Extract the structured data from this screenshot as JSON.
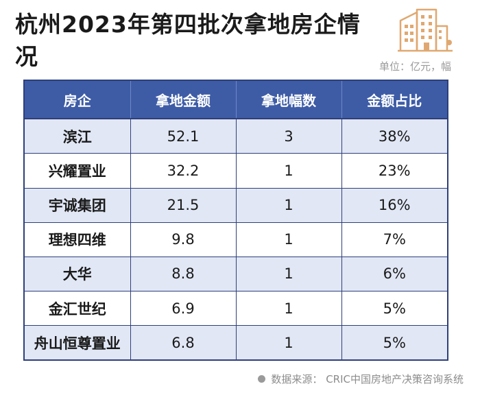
{
  "title": "杭州2023年第四批次拿地房企情况",
  "unit": "单位：亿元，幅",
  "source": "数据来源： CRIC中国房地产决策咨询系统",
  "colors": {
    "header_bg": "#3e5ca6",
    "stripe": "#e1e7f5",
    "border": "#2d3f7a",
    "icon": "#e0a870"
  },
  "icon": "building-icon",
  "table": {
    "headers": [
      "房企",
      "拿地金额",
      "拿地幅数",
      "金额占比"
    ],
    "rows": [
      [
        "滨江",
        "52.1",
        "3",
        "38%"
      ],
      [
        "兴耀置业",
        "32.2",
        "1",
        "23%"
      ],
      [
        "宇诚集团",
        "21.5",
        "1",
        "16%"
      ],
      [
        "理想四维",
        "9.8",
        "1",
        "7%"
      ],
      [
        "大华",
        "8.8",
        "1",
        "6%"
      ],
      [
        "金汇世纪",
        "6.9",
        "1",
        "5%"
      ],
      [
        "舟山恒尊置业",
        "6.8",
        "1",
        "5%"
      ]
    ]
  },
  "chart_data": {
    "type": "table",
    "title": "杭州2023年第四批次拿地房企情况",
    "unit": "单位：亿元，幅",
    "columns": [
      "房企",
      "拿地金额",
      "拿地幅数",
      "金额占比"
    ],
    "rows": [
      {
        "房企": "滨江",
        "拿地金额": 52.1,
        "拿地幅数": 3,
        "金额占比": "38%"
      },
      {
        "房企": "兴耀置业",
        "拿地金额": 32.2,
        "拿地幅数": 1,
        "金额占比": "23%"
      },
      {
        "房企": "宇诚集团",
        "拿地金额": 21.5,
        "拿地幅数": 1,
        "金额占比": "16%"
      },
      {
        "房企": "理想四维",
        "拿地金额": 9.8,
        "拿地幅数": 1,
        "金额占比": "7%"
      },
      {
        "房企": "大华",
        "拿地金额": 8.8,
        "拿地幅数": 1,
        "金额占比": "6%"
      },
      {
        "房企": "金汇世纪",
        "拿地金额": 6.9,
        "拿地幅数": 1,
        "金额占比": "5%"
      },
      {
        "房企": "舟山恒尊置业",
        "拿地金额": 6.8,
        "拿地幅数": 1,
        "金额占比": "5%"
      }
    ],
    "source": "数据来源： CRIC中国房地产决策咨询系统"
  }
}
